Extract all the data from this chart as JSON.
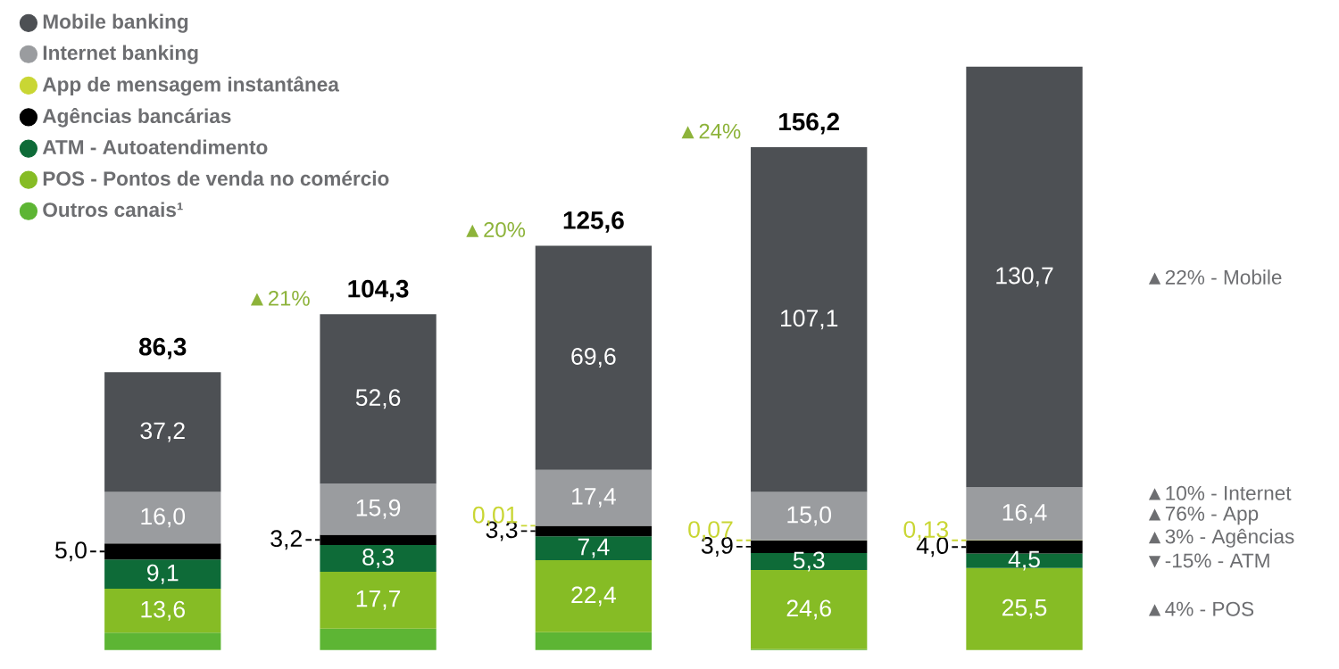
{
  "chart_data": {
    "type": "bar",
    "stacked": true,
    "legend": "top left",
    "categories": [
      null,
      null,
      null,
      null,
      null
    ],
    "series": [
      {
        "name": "Outros canais¹",
        "color": "#5db534",
        "values": [
          5.4,
          6.6,
          5.49,
          0.23,
          null
        ]
      },
      {
        "name": "POS - Pontos de venda no comércio",
        "color": "#86bc25",
        "values": [
          13.6,
          17.7,
          22.4,
          24.6,
          25.5
        ],
        "value_labels": [
          "13,6",
          "17,7",
          "22,4",
          "24,6",
          "25,5"
        ]
      },
      {
        "name": "ATM - Autoatendimento",
        "color": "#0e6b38",
        "values": [
          9.1,
          8.3,
          7.4,
          5.3,
          4.5
        ],
        "value_labels": [
          "9,1",
          "8,3",
          "7,4",
          "5,3",
          "4,5"
        ]
      },
      {
        "name": "Agências bancárias",
        "color": "#000000",
        "values": [
          5.0,
          3.2,
          3.3,
          3.9,
          4.0
        ],
        "value_labels": [
          "5,0",
          "3,2",
          "3,3",
          "3,9",
          "4,0"
        ]
      },
      {
        "name": "App de mensagem instantânea",
        "color": "#c9d634",
        "values": [
          null,
          null,
          0.01,
          0.07,
          0.13
        ],
        "value_labels": [
          null,
          null,
          "0,01",
          "0,07",
          "0,13"
        ]
      },
      {
        "name": "Internet banking",
        "color": "#9a9c9f",
        "values": [
          16.0,
          15.9,
          17.4,
          15.0,
          16.4
        ],
        "value_labels": [
          "16,0",
          "15,9",
          "17,4",
          "15,0",
          "16,4"
        ]
      },
      {
        "name": "Mobile banking",
        "color": "#4d5054",
        "values": [
          37.2,
          52.6,
          69.6,
          107.1,
          130.7
        ],
        "value_labels": [
          "37,2",
          "52,6",
          "69,6",
          "107,1",
          "130,7"
        ]
      }
    ],
    "totals": [
      "86,3",
      "104,3",
      "125,6",
      "156,2",
      null
    ],
    "annotations": [
      "▲21%",
      "▲20%",
      "▲24%",
      "▲22% - Mobile",
      "▲10% - Internet",
      "▲76% - App",
      "▲3% - Agências",
      "▼-15% - ATM",
      "▲4% - POS"
    ]
  }
}
